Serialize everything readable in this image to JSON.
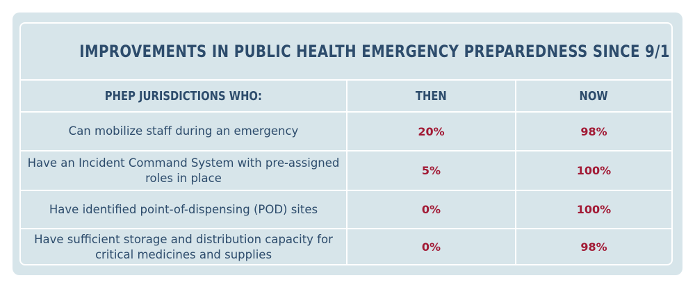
{
  "chart_data": {
    "type": "table",
    "title": "IMPROVEMENTS IN PUBLIC HEALTH EMERGENCY PREPAREDNESS SINCE 9/11",
    "columns": [
      "PHEP JURISDICTIONS WHO:",
      "THEN",
      "NOW"
    ],
    "rows": [
      {
        "label": "Can mobilize staff during an emergency",
        "then": "20%",
        "now": "98%"
      },
      {
        "label": "Have an Incident Command System with pre-assigned roles in place",
        "then": "5%",
        "now": "100%"
      },
      {
        "label": "Have identified point-of-dispensing (POD) sites",
        "then": "0%",
        "now": "100%"
      },
      {
        "label": "Have sufficient storage and distribution capacity for critical medicines and supplies",
        "then": "0%",
        "now": "98%"
      }
    ]
  },
  "colors": {
    "background": "#d7e5ea",
    "header_text": "#2d4c6c",
    "value_text": "#a21a35",
    "rules": "#ffffff"
  }
}
